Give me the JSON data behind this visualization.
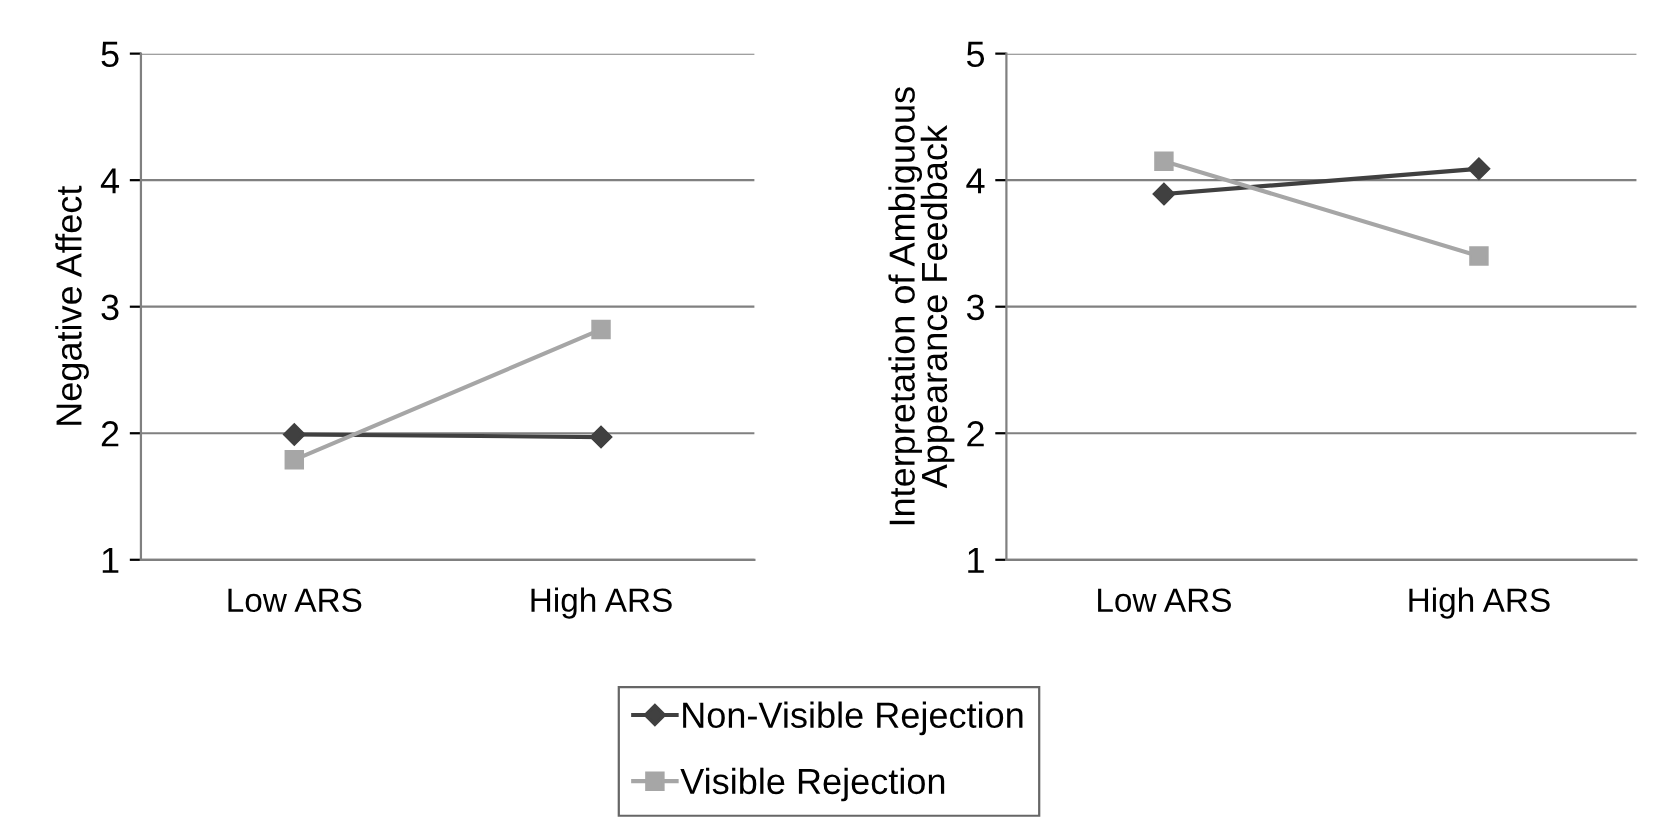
{
  "chart_data": [
    {
      "type": "line",
      "ylabel": "Negative Affect",
      "categories": [
        "Low ARS",
        "High ARS"
      ],
      "ylim": [
        1,
        5
      ],
      "yticks": [
        1,
        2,
        3,
        4,
        5
      ],
      "grid": "y",
      "legend": "bottom",
      "series": [
        {
          "name": "Non-Visible Rejection",
          "color": "#404040",
          "marker": "diamond",
          "values": [
            1.99,
            1.97
          ]
        },
        {
          "name": "Visible Rejection",
          "color": "#a6a6a6",
          "marker": "square",
          "values": [
            1.79,
            2.82
          ]
        }
      ]
    },
    {
      "type": "line",
      "ylabel": "Interpretation of Ambiguous\nAppearance Feedback",
      "categories": [
        "Low ARS",
        "High ARS"
      ],
      "ylim": [
        1,
        5
      ],
      "yticks": [
        1,
        2,
        3,
        4,
        5
      ],
      "grid": "y",
      "series": [
        {
          "color": "#404040",
          "marker": "diamond",
          "values": [
            3.89,
            4.09
          ]
        },
        {
          "color": "#a6a6a6",
          "marker": "square",
          "values": [
            4.15,
            3.4
          ]
        }
      ]
    }
  ]
}
